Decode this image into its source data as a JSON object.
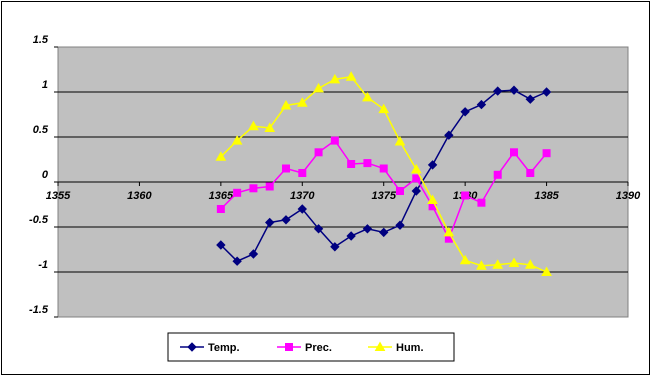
{
  "chart_data": {
    "type": "line",
    "title": "",
    "xlabel": "",
    "ylabel": "",
    "xlim": [
      1355,
      1390
    ],
    "ylim": [
      -1.5,
      1.5
    ],
    "x_ticks": [
      1355,
      1360,
      1365,
      1370,
      1375,
      1380,
      1385,
      1390
    ],
    "y_ticks": [
      -1.5,
      -1,
      -0.5,
      0,
      0.5,
      1,
      1.5
    ],
    "x_tick_labels": [
      "1355",
      "1360",
      "1365",
      "1370",
      "1375",
      "1380",
      "1385",
      "1390"
    ],
    "y_tick_labels": [
      "-1.5",
      "-1",
      "-0.5",
      "0",
      "0.5",
      "1",
      "1.5"
    ],
    "grid": "horizontal",
    "plot_background": "#C0C0C0",
    "legend_position": "bottom",
    "x": [
      1365,
      1366,
      1367,
      1368,
      1369,
      1370,
      1371,
      1372,
      1373,
      1374,
      1375,
      1376,
      1377,
      1378,
      1379,
      1380,
      1381,
      1382,
      1383,
      1384,
      1385
    ],
    "series": [
      {
        "name": "Temp.",
        "color": "#000080",
        "marker": "diamond",
        "values": [
          -0.7,
          -0.88,
          -0.8,
          -0.45,
          -0.42,
          -0.3,
          -0.52,
          -0.72,
          -0.6,
          -0.52,
          -0.56,
          -0.48,
          -0.1,
          0.19,
          0.52,
          0.78,
          0.86,
          1.01,
          1.02,
          0.92,
          1.0
        ]
      },
      {
        "name": "Prec.",
        "color": "#FF00FF",
        "marker": "square",
        "values": [
          -0.3,
          -0.12,
          -0.07,
          -0.05,
          0.15,
          0.1,
          0.33,
          0.46,
          0.2,
          0.21,
          0.15,
          -0.1,
          0.04,
          -0.27,
          -0.63,
          -0.15,
          -0.23,
          0.08,
          0.33,
          0.1,
          0.32
        ]
      },
      {
        "name": "Hum.",
        "color": "#FFFF00",
        "marker": "triangle",
        "values": [
          0.28,
          0.46,
          0.62,
          0.6,
          0.85,
          0.88,
          1.04,
          1.14,
          1.17,
          0.94,
          0.81,
          0.45,
          0.14,
          -0.2,
          -0.56,
          -0.87,
          -0.93,
          -0.92,
          -0.9,
          -0.92,
          -1.0
        ]
      }
    ]
  }
}
